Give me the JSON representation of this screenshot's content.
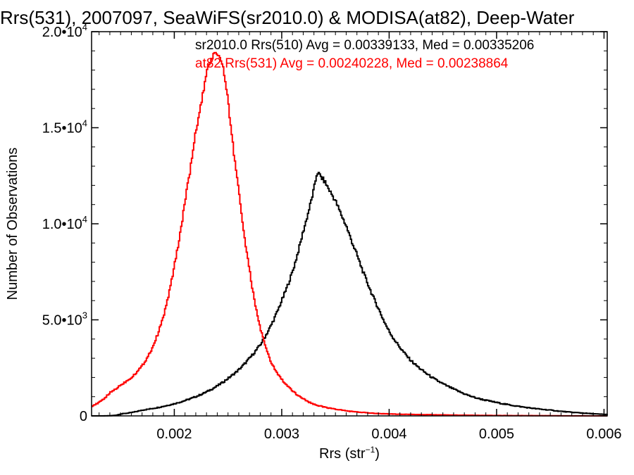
{
  "chart_data": {
    "type": "line",
    "title": "Rrs(531), 2007097, SeaWiFS(sr2010.0) & MODISA(at82), Deep-Water",
    "xlabel": {
      "main": "Rrs (str",
      "sup": "−1",
      "close": ")"
    },
    "ylabel": "Number of Observations",
    "xlim": [
      0.00123,
      0.00603
    ],
    "ylim": [
      0,
      20000
    ],
    "x_ticks": [
      {
        "value": 0.002,
        "label": "0.002"
      },
      {
        "value": 0.003,
        "label": "0.003"
      },
      {
        "value": 0.004,
        "label": "0.004"
      },
      {
        "value": 0.005,
        "label": "0.005"
      },
      {
        "value": 0.006,
        "label": "0.006"
      }
    ],
    "y_ticks": [
      {
        "value": 0,
        "mant": "0",
        "exp": ""
      },
      {
        "value": 5000,
        "mant": "5.0•10",
        "exp": "3"
      },
      {
        "value": 10000,
        "mant": "1.0•10",
        "exp": "4"
      },
      {
        "value": 15000,
        "mant": "1.5•10",
        "exp": "4"
      },
      {
        "value": 20000,
        "mant": "2.0•10",
        "exp": "4"
      }
    ],
    "grid": false,
    "series": [
      {
        "name": "sr2010.0 Rrs(510)",
        "label": "sr2010.0 Rrs(510) Avg = 0.00339133, Med = 0.00335206",
        "color": "#000000",
        "x": [
          0.0013,
          0.0015,
          0.0017,
          0.0019,
          0.0021,
          0.0023,
          0.0025,
          0.0026,
          0.0027,
          0.0028,
          0.0029,
          0.003,
          0.0031,
          0.0032,
          0.0033,
          0.00333,
          0.0034,
          0.0035,
          0.0036,
          0.0037,
          0.0038,
          0.0039,
          0.004,
          0.0042,
          0.0044,
          0.0046,
          0.0048,
          0.005,
          0.0052,
          0.0055,
          0.0058,
          0.006
        ],
        "y": [
          0,
          100,
          300,
          500,
          800,
          1250,
          1950,
          2400,
          3000,
          3700,
          4700,
          6000,
          7500,
          9600,
          11800,
          12700,
          12200,
          11200,
          9900,
          8400,
          6900,
          5600,
          4400,
          2900,
          2000,
          1400,
          950,
          700,
          500,
          300,
          150,
          80
        ]
      },
      {
        "name": "at82 Rrs(531)",
        "label": "at82 Rrs(531) Avg = 0.00240228, Med = 0.00238864",
        "color": "#ff0000",
        "x": [
          0.00123,
          0.0013,
          0.0014,
          0.0015,
          0.0016,
          0.0017,
          0.0018,
          0.0019,
          0.002,
          0.0021,
          0.0022,
          0.0023,
          0.00235,
          0.0024,
          0.00245,
          0.0025,
          0.0026,
          0.0027,
          0.0028,
          0.0029,
          0.003,
          0.0031,
          0.0032,
          0.0033,
          0.0035,
          0.0037,
          0.004,
          0.0045,
          0.005,
          0.0055,
          0.006
        ],
        "y": [
          500,
          700,
          1200,
          1600,
          2000,
          2600,
          3600,
          5200,
          7800,
          11200,
          14800,
          17800,
          18700,
          18900,
          18300,
          16400,
          11800,
          7600,
          4600,
          2800,
          1900,
          1300,
          900,
          600,
          350,
          200,
          100,
          50,
          20,
          10,
          0
        ]
      }
    ]
  }
}
